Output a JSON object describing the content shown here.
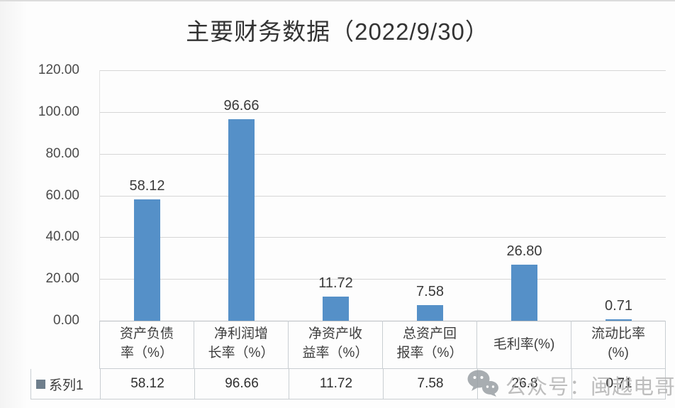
{
  "title": "主要财务数据（2022/9/30）",
  "watermark": {
    "icon": "wechat-icon",
    "text": "公众号：闽越电哥"
  },
  "legend": {
    "marker_color": "#6e7e8c",
    "label": "系列1"
  },
  "chart_data": {
    "type": "bar",
    "title": "主要财务数据（2022/9/30）",
    "categories": [
      "资产负债率（%）",
      "净利润增长率（%）",
      "净资产收益率（%）",
      "总资产回报率（%）",
      "毛利率(%)",
      "流动比率(%)"
    ],
    "category_lines": [
      [
        "资产负债",
        "率（%）"
      ],
      [
        "净利润增",
        "长率（%）"
      ],
      [
        "净资产收",
        "益率（%）"
      ],
      [
        "总资产回",
        "报率（%）"
      ],
      [
        "毛利率(%)"
      ],
      [
        "流动比率",
        "(%)"
      ]
    ],
    "series": [
      {
        "name": "系列1",
        "values": [
          58.12,
          96.66,
          11.72,
          7.58,
          26.8,
          0.71
        ]
      }
    ],
    "data_labels": [
      "58.12",
      "96.66",
      "11.72",
      "7.58",
      "26.80",
      "0.71"
    ],
    "table_values": [
      "58.12",
      "96.66",
      "11.72",
      "7.58",
      "26.8",
      "0.71"
    ],
    "xlabel": "",
    "ylabel": "",
    "ylim": [
      0,
      120
    ],
    "yticks": [
      "120.00",
      "100.00",
      "80.00",
      "60.00",
      "40.00",
      "20.00",
      "0.00"
    ],
    "grid": true,
    "legend_position": "bottom-table",
    "bar_color": "#5590c8"
  }
}
